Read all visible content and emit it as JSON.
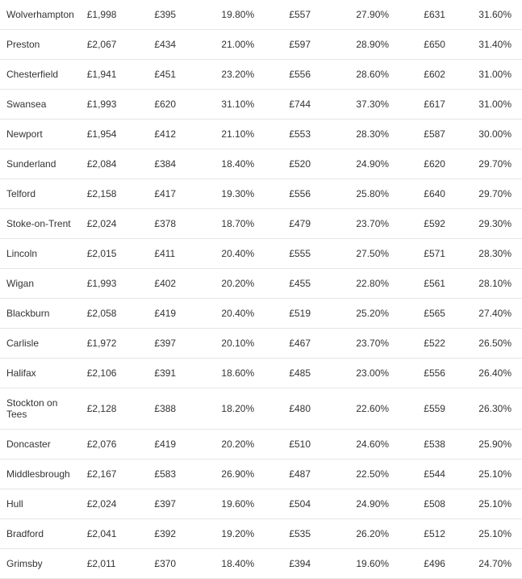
{
  "table": {
    "type": "table",
    "background_color": "#ffffff",
    "border_color": "#e5e5e5",
    "text_color": "#333333",
    "font_size": 12,
    "rows": [
      [
        "Wolverhampton",
        "£1,998",
        "£395",
        "19.80%",
        "£557",
        "27.90%",
        "£631",
        "31.60%"
      ],
      [
        "Preston",
        "£2,067",
        "£434",
        "21.00%",
        "£597",
        "28.90%",
        "£650",
        "31.40%"
      ],
      [
        "Chesterfield",
        "£1,941",
        "£451",
        "23.20%",
        "£556",
        "28.60%",
        "£602",
        "31.00%"
      ],
      [
        "Swansea",
        "£1,993",
        "£620",
        "31.10%",
        "£744",
        "37.30%",
        "£617",
        "31.00%"
      ],
      [
        "Newport",
        "£1,954",
        "£412",
        "21.10%",
        "£553",
        "28.30%",
        "£587",
        "30.00%"
      ],
      [
        "Sunderland",
        "£2,084",
        "£384",
        "18.40%",
        "£520",
        "24.90%",
        "£620",
        "29.70%"
      ],
      [
        "Telford",
        "£2,158",
        "£417",
        "19.30%",
        "£556",
        "25.80%",
        "£640",
        "29.70%"
      ],
      [
        "Stoke-on-Trent",
        "£2,024",
        "£378",
        "18.70%",
        "£479",
        "23.70%",
        "£592",
        "29.30%"
      ],
      [
        "Lincoln",
        "£2,015",
        "£411",
        "20.40%",
        "£555",
        "27.50%",
        "£571",
        "28.30%"
      ],
      [
        "Wigan",
        "£1,993",
        "£402",
        "20.20%",
        "£455",
        "22.80%",
        "£561",
        "28.10%"
      ],
      [
        "Blackburn",
        "£2,058",
        "£419",
        "20.40%",
        "£519",
        "25.20%",
        "£565",
        "27.40%"
      ],
      [
        "Carlisle",
        "£1,972",
        "£397",
        "20.10%",
        "£467",
        "23.70%",
        "£522",
        "26.50%"
      ],
      [
        "Halifax",
        "£2,106",
        "£391",
        "18.60%",
        "£485",
        "23.00%",
        "£556",
        "26.40%"
      ],
      [
        "Stockton on Tees",
        "£2,128",
        "£388",
        "18.20%",
        "£480",
        "22.60%",
        "£559",
        "26.30%"
      ],
      [
        "Doncaster",
        "£2,076",
        "£419",
        "20.20%",
        "£510",
        "24.60%",
        "£538",
        "25.90%"
      ],
      [
        "Middlesbrough",
        "£2,167",
        "£583",
        "26.90%",
        "£487",
        "22.50%",
        "£544",
        "25.10%"
      ],
      [
        "Hull",
        "£2,024",
        "£397",
        "19.60%",
        "£504",
        "24.90%",
        "£508",
        "25.10%"
      ],
      [
        "Bradford",
        "£2,041",
        "£392",
        "19.20%",
        "£535",
        "26.20%",
        "£512",
        "25.10%"
      ],
      [
        "Grimsby",
        "£2,011",
        "£370",
        "18.40%",
        "£394",
        "19.60%",
        "£496",
        "24.70%"
      ]
    ]
  }
}
